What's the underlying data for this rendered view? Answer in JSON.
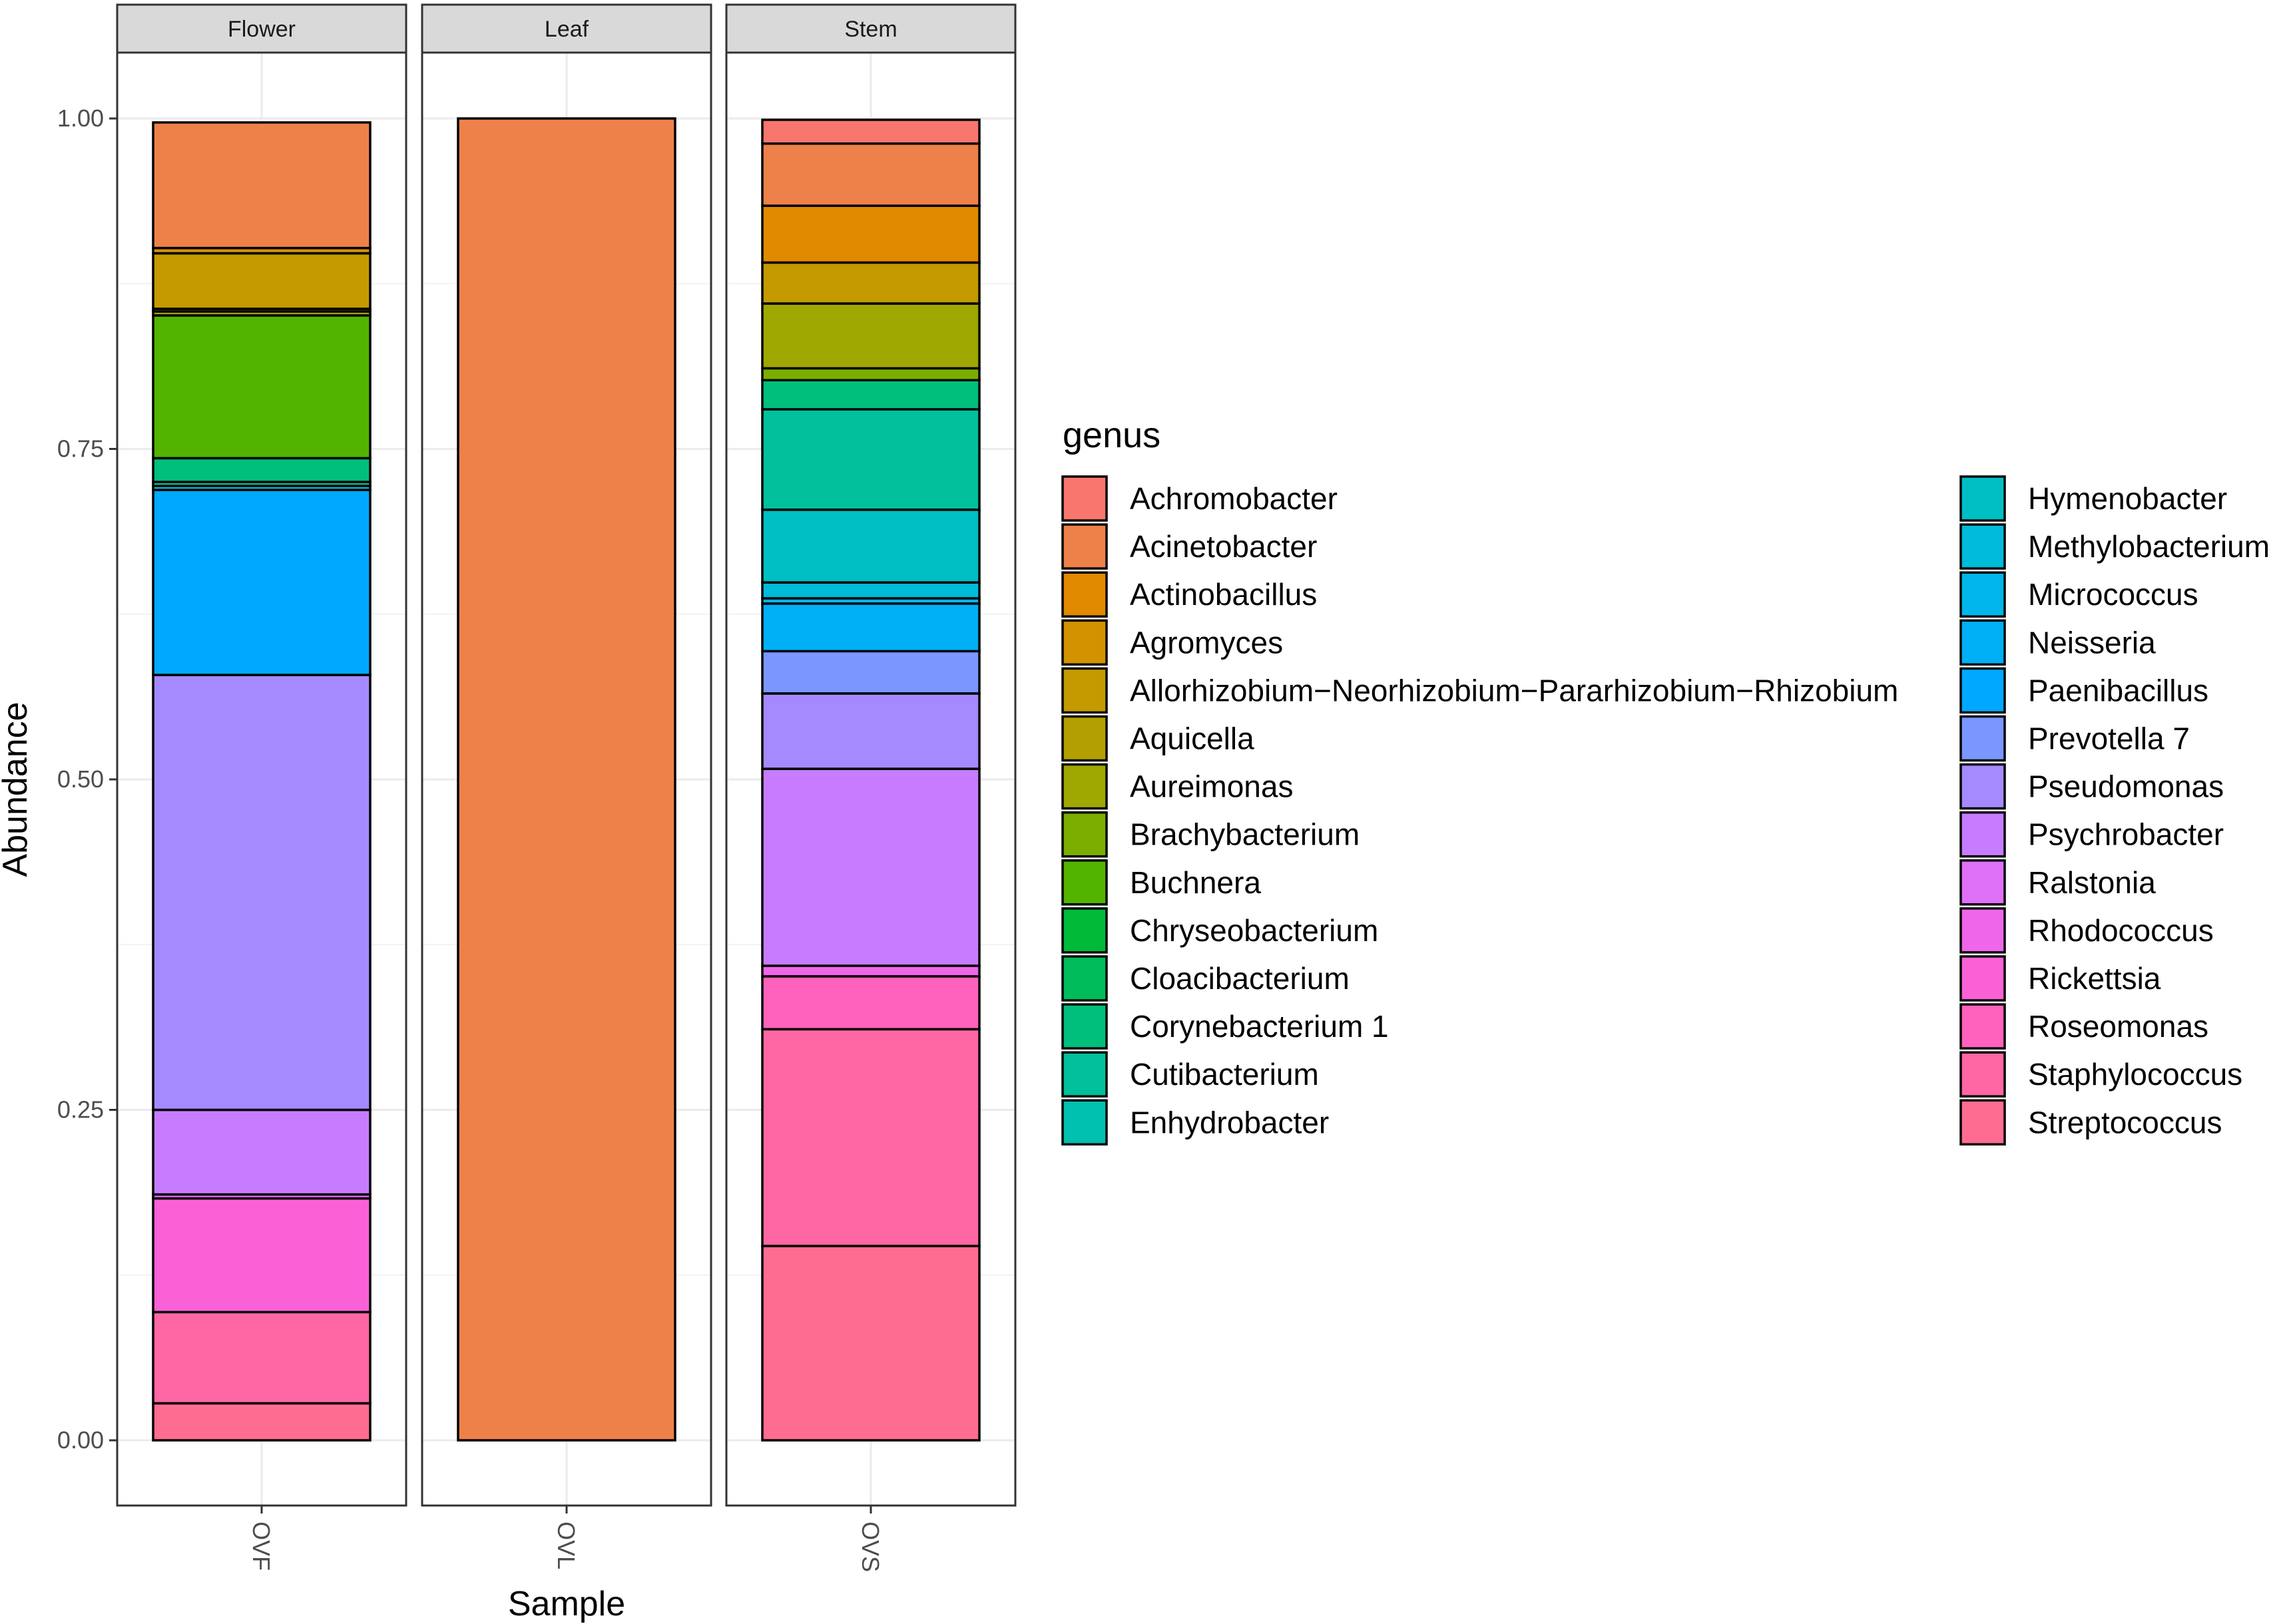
{
  "chart_data": {
    "type": "bar",
    "stacked": true,
    "facet_labels": [
      "Flower",
      "Leaf",
      "Stem"
    ],
    "x_labels": [
      "OVF",
      "OVL",
      "OVS"
    ],
    "xlabel": "Sample",
    "ylabel": "Abundance",
    "ylim": [
      0,
      1.0
    ],
    "y_ticks": [
      "0.00",
      "0.25",
      "0.50",
      "0.75",
      "1.00"
    ],
    "y_tick_values": [
      0,
      0.25,
      0.5,
      0.75,
      1.0
    ],
    "grid": true,
    "legend": {
      "title": "genus",
      "placement": "right",
      "items": [
        {
          "label": "Achromobacter",
          "color": "#F8766D"
        },
        {
          "label": "Acinetobacter",
          "color": "#EE8149"
        },
        {
          "label": "Actinobacillus",
          "color": "#E18A00"
        },
        {
          "label": "Agromyces",
          "color": "#D39200"
        },
        {
          "label": "Allorhizobium−Neorhizobium−Pararhizobium−Rhizobium",
          "color": "#C49A00"
        },
        {
          "label": "Aquicella",
          "color": "#B3A000"
        },
        {
          "label": "Aureimonas",
          "color": "#9FA800"
        },
        {
          "label": "Brachybacterium",
          "color": "#7CAE00"
        },
        {
          "label": "Buchnera",
          "color": "#53B400"
        },
        {
          "label": "Chryseobacterium",
          "color": "#00BA38"
        },
        {
          "label": "Cloacibacterium",
          "color": "#00BC59"
        },
        {
          "label": "Corynebacterium 1",
          "color": "#00BF7D"
        },
        {
          "label": "Cutibacterium",
          "color": "#00C19C"
        },
        {
          "label": "Enhydrobacter",
          "color": "#00C0AF"
        },
        {
          "label": "Hymenobacter",
          "color": "#00BFC4"
        },
        {
          "label": "Methylobacterium",
          "color": "#00BBDA"
        },
        {
          "label": "Micrococcus",
          "color": "#00B6EB"
        },
        {
          "label": "Neisseria",
          "color": "#00B0F6"
        },
        {
          "label": "Paenibacillus",
          "color": "#00A9FF"
        },
        {
          "label": "Prevotella 7",
          "color": "#7997FF"
        },
        {
          "label": "Pseudomonas",
          "color": "#A58AFF"
        },
        {
          "label": "Psychrobacter",
          "color": "#C77CFF"
        },
        {
          "label": "Ralstonia",
          "color": "#DF70F8"
        },
        {
          "label": "Rhodococcus",
          "color": "#F066EA"
        },
        {
          "label": "Rickettsia",
          "color": "#FB61D7"
        },
        {
          "label": "Roseomonas",
          "color": "#FF62BC"
        },
        {
          "label": "Staphylococcus",
          "color": "#FF67A4"
        },
        {
          "label": "Streptococcus",
          "color": "#FF6C91"
        }
      ]
    },
    "series": [
      {
        "name": "Achromobacter",
        "values": [
          0,
          0,
          0.018
        ]
      },
      {
        "name": "Acinetobacter",
        "values": [
          0.095,
          1.0,
          0.047
        ]
      },
      {
        "name": "Actinobacillus",
        "values": [
          0,
          0,
          0.043
        ]
      },
      {
        "name": "Agromyces",
        "values": [
          0.004,
          0,
          0
        ]
      },
      {
        "name": "Allorhizobium−Neorhizobium−Pararhizobium−Rhizobium",
        "values": [
          0.042,
          0,
          0.031
        ]
      },
      {
        "name": "Aquicella",
        "values": [
          0.002,
          0,
          0
        ]
      },
      {
        "name": "Aureimonas",
        "values": [
          0.003,
          0,
          0.049
        ]
      },
      {
        "name": "Brachybacterium",
        "values": [
          0,
          0,
          0.009
        ]
      },
      {
        "name": "Buchnera",
        "values": [
          0.108,
          0,
          0
        ]
      },
      {
        "name": "Chryseobacterium",
        "values": [
          0,
          0,
          0
        ]
      },
      {
        "name": "Cloacibacterium",
        "values": [
          0,
          0,
          0
        ]
      },
      {
        "name": "Corynebacterium 1",
        "values": [
          0.018,
          0,
          0.022
        ]
      },
      {
        "name": "Cutibacterium",
        "values": [
          0.003,
          0,
          0.076
        ]
      },
      {
        "name": "Enhydrobacter",
        "values": [
          0,
          0,
          0
        ]
      },
      {
        "name": "Hymenobacter",
        "values": [
          0,
          0,
          0.055
        ]
      },
      {
        "name": "Methylobacterium",
        "values": [
          0.003,
          0,
          0.012
        ]
      },
      {
        "name": "Micrococcus",
        "values": [
          0,
          0,
          0.004
        ]
      },
      {
        "name": "Neisseria",
        "values": [
          0,
          0,
          0.036
        ]
      },
      {
        "name": "Paenibacillus",
        "values": [
          0.14,
          0,
          0
        ]
      },
      {
        "name": "Prevotella 7",
        "values": [
          0,
          0,
          0.032
        ]
      },
      {
        "name": "Pseudomonas",
        "values": [
          0.329,
          0,
          0.057
        ]
      },
      {
        "name": "Psychrobacter",
        "values": [
          0.064,
          0,
          0.149
        ]
      },
      {
        "name": "Ralstonia",
        "values": [
          0.003,
          0,
          0
        ]
      },
      {
        "name": "Rhodococcus",
        "values": [
          0,
          0,
          0.008
        ]
      },
      {
        "name": "Rickettsia",
        "values": [
          0.086,
          0,
          0
        ]
      },
      {
        "name": "Roseomonas",
        "values": [
          0,
          0,
          0.04
        ]
      },
      {
        "name": "Staphylococcus",
        "values": [
          0.069,
          0,
          0.164
        ]
      },
      {
        "name": "Streptococcus",
        "values": [
          0.028,
          0,
          0.147
        ]
      }
    ]
  }
}
